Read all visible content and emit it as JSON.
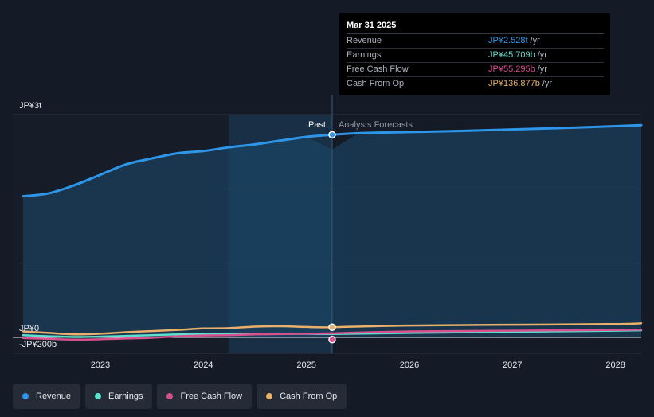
{
  "chart_data": {
    "type": "area",
    "x_range": [
      2022.15,
      2028.25
    ],
    "y_range": [
      -200,
      3000
    ],
    "unit": "billion JPY",
    "y_ticks": [
      {
        "value": 3000,
        "label": "JP¥3t"
      },
      {
        "value": 0,
        "label": "JP¥0"
      },
      {
        "value": -200,
        "label": "-JP¥200b"
      }
    ],
    "x_ticks": [
      {
        "value": 2023,
        "label": "2023"
      },
      {
        "value": 2024,
        "label": "2024"
      },
      {
        "value": 2025,
        "label": "2025"
      },
      {
        "value": 2026,
        "label": "2026"
      },
      {
        "value": 2027,
        "label": "2027"
      },
      {
        "value": 2028,
        "label": "2028"
      }
    ],
    "past_label": "Past",
    "forecast_label": "Analysts Forecasts",
    "divider_x": 2025.25,
    "highlight_start_x": 2024.25,
    "series": [
      {
        "name": "Revenue",
        "color": "#2e96e8",
        "points": [
          [
            2022.25,
            1900
          ],
          [
            2022.5,
            1940
          ],
          [
            2022.75,
            2050
          ],
          [
            2023.0,
            2190
          ],
          [
            2023.25,
            2330
          ],
          [
            2023.5,
            2410
          ],
          [
            2023.75,
            2480
          ],
          [
            2024.0,
            2510
          ],
          [
            2024.25,
            2560
          ],
          [
            2024.5,
            2600
          ],
          [
            2024.75,
            2650
          ],
          [
            2025.0,
            2700
          ],
          [
            2025.25,
            2528
          ],
          [
            2025.5,
            2750
          ],
          [
            2026.0,
            2765
          ],
          [
            2026.5,
            2780
          ],
          [
            2027.0,
            2800
          ],
          [
            2027.5,
            2820
          ],
          [
            2028.0,
            2845
          ],
          [
            2028.25,
            2858
          ]
        ]
      },
      {
        "name": "Earnings",
        "color": "#5de0cf",
        "points": [
          [
            2022.25,
            30
          ],
          [
            2022.5,
            15
          ],
          [
            2022.75,
            5
          ],
          [
            2023.0,
            10
          ],
          [
            2023.25,
            20
          ],
          [
            2023.5,
            30
          ],
          [
            2023.75,
            40
          ],
          [
            2024.0,
            45
          ],
          [
            2024.25,
            45
          ],
          [
            2024.5,
            48
          ],
          [
            2024.75,
            50
          ],
          [
            2025.0,
            48
          ],
          [
            2025.25,
            45.709
          ],
          [
            2026.0,
            60
          ],
          [
            2027.0,
            75
          ],
          [
            2028.0,
            90
          ],
          [
            2028.25,
            95
          ]
        ]
      },
      {
        "name": "Free Cash Flow",
        "color": "#d9508f",
        "points": [
          [
            2022.25,
            -10
          ],
          [
            2022.5,
            -20
          ],
          [
            2022.75,
            -30
          ],
          [
            2023.0,
            -25
          ],
          [
            2023.25,
            -15
          ],
          [
            2023.5,
            -5
          ],
          [
            2023.75,
            15
          ],
          [
            2024.0,
            25
          ],
          [
            2024.25,
            30
          ],
          [
            2024.5,
            40
          ],
          [
            2024.75,
            45
          ],
          [
            2025.0,
            50
          ],
          [
            2025.25,
            55.295
          ],
          [
            2026.0,
            80
          ],
          [
            2027.0,
            90
          ],
          [
            2028.0,
            100
          ],
          [
            2028.25,
            105
          ]
        ]
      },
      {
        "name": "Cash From Op",
        "color": "#e8b06a",
        "points": [
          [
            2022.25,
            80
          ],
          [
            2022.5,
            60
          ],
          [
            2022.75,
            40
          ],
          [
            2023.0,
            50
          ],
          [
            2023.25,
            70
          ],
          [
            2023.5,
            85
          ],
          [
            2023.75,
            100
          ],
          [
            2024.0,
            120
          ],
          [
            2024.25,
            125
          ],
          [
            2024.5,
            145
          ],
          [
            2024.75,
            150
          ],
          [
            2025.0,
            140
          ],
          [
            2025.25,
            136.877
          ],
          [
            2026.0,
            160
          ],
          [
            2027.0,
            170
          ],
          [
            2028.0,
            180
          ],
          [
            2028.25,
            190
          ]
        ]
      }
    ],
    "tooltip": {
      "date": "Mar 31 2025",
      "rows": [
        {
          "name": "Revenue",
          "value": "JP¥2.528t",
          "unit": "/yr",
          "color": "#2e96e8"
        },
        {
          "name": "Earnings",
          "value": "JP¥45.709b",
          "unit": "/yr",
          "color": "#5de0cf"
        },
        {
          "name": "Free Cash Flow",
          "value": "JP¥55.295b",
          "unit": "/yr",
          "color": "#d9508f"
        },
        {
          "name": "Cash From Op",
          "value": "JP¥136.877b",
          "unit": "/yr",
          "color": "#e8b06a"
        }
      ]
    }
  },
  "legend": [
    {
      "label": "Revenue",
      "color": "#2e96e8"
    },
    {
      "label": "Earnings",
      "color": "#5de0cf"
    },
    {
      "label": "Free Cash Flow",
      "color": "#d9508f"
    },
    {
      "label": "Cash From Op",
      "color": "#e8b06a"
    }
  ]
}
